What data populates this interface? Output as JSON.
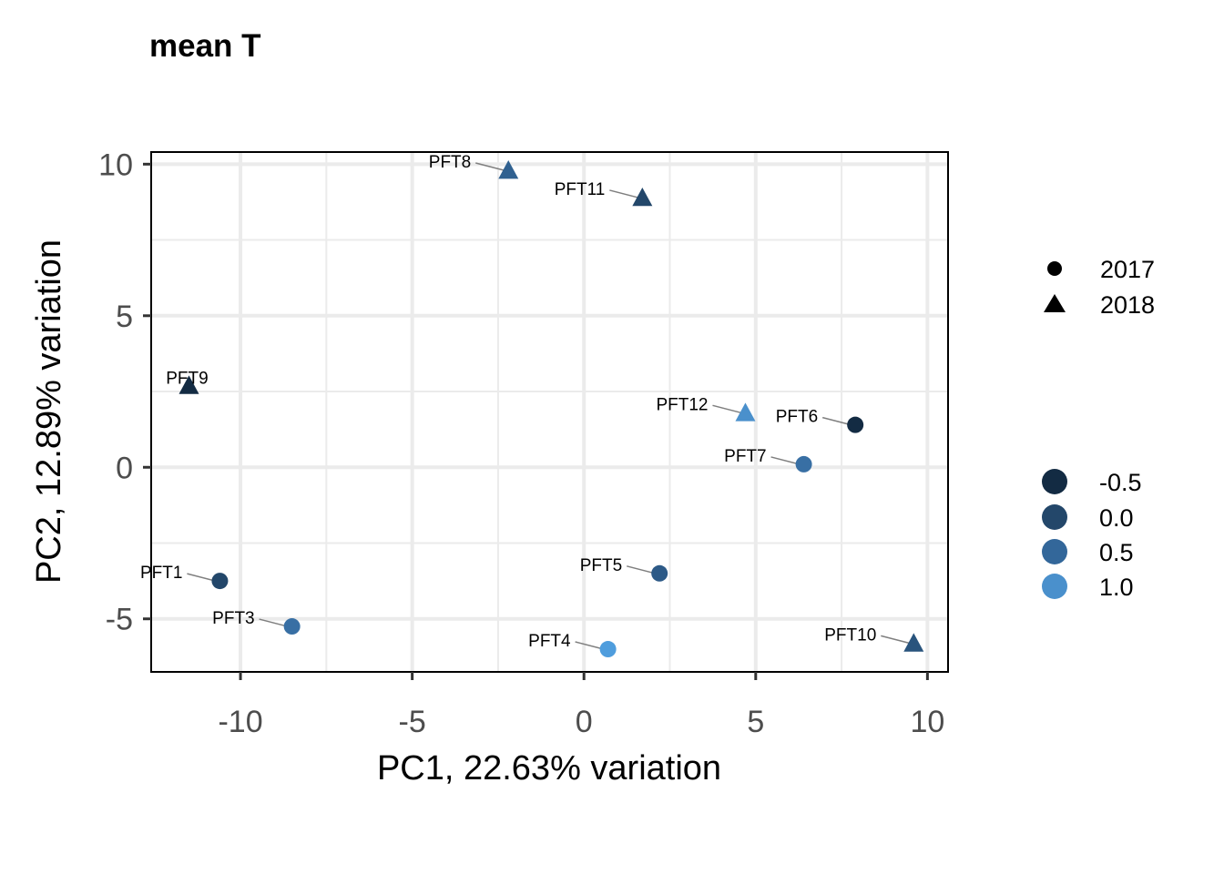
{
  "chart_data": {
    "type": "scatter",
    "title": "mean T",
    "xlabel": "PC1, 22.63% variation",
    "ylabel": "PC2, 12.89% variation",
    "xlim": [
      -12.6,
      10.6
    ],
    "ylim": [
      -6.75,
      10.4
    ],
    "xticks": [
      -10,
      -5,
      0,
      5,
      10
    ],
    "xtick_labels": [
      "-10",
      "-5",
      "0",
      "5",
      "10"
    ],
    "yticks": [
      -5,
      0,
      5,
      10
    ],
    "ytick_labels": [
      "-5",
      "0",
      "5",
      "10"
    ],
    "grid": true,
    "points": [
      {
        "label": "PFT8",
        "x": -2.2,
        "y": 9.8,
        "year": "2018",
        "color_value": 0.4
      },
      {
        "label": "PFT11",
        "x": 1.7,
        "y": 8.9,
        "year": "2018",
        "color_value": 0.0
      },
      {
        "label": "PFT9",
        "x": -11.5,
        "y": 2.7,
        "year": "2018",
        "color_value": -0.5
      },
      {
        "label": "PFT12",
        "x": 4.7,
        "y": 1.8,
        "year": "2018",
        "color_value": 1.0
      },
      {
        "label": "PFT6",
        "x": 7.9,
        "y": 1.4,
        "year": "2017",
        "color_value": -0.6
      },
      {
        "label": "PFT7",
        "x": 6.4,
        "y": 0.1,
        "year": "2017",
        "color_value": 0.6
      },
      {
        "label": "PFT1",
        "x": -10.6,
        "y": -3.75,
        "year": "2017",
        "color_value": 0.0
      },
      {
        "label": "PFT5",
        "x": 2.2,
        "y": -3.5,
        "year": "2017",
        "color_value": 0.3
      },
      {
        "label": "PFT3",
        "x": -8.5,
        "y": -5.25,
        "year": "2017",
        "color_value": 0.6
      },
      {
        "label": "PFT4",
        "x": 0.7,
        "y": -6.0,
        "year": "2017",
        "color_value": 1.2
      },
      {
        "label": "PFT10",
        "x": 9.6,
        "y": -5.8,
        "year": "2018",
        "color_value": 0.2
      }
    ],
    "legend_shape": {
      "placement": "right",
      "entries": [
        {
          "label": "2017",
          "shape": "circle"
        },
        {
          "label": "2018",
          "shape": "triangle"
        }
      ]
    },
    "legend_color": {
      "placement": "right",
      "entries": [
        {
          "label": "-0.5",
          "value": -0.5,
          "color": "#132B43"
        },
        {
          "label": "0.0",
          "value": 0.0,
          "color": "#23476A"
        },
        {
          "label": "0.5",
          "value": 0.5,
          "color": "#33679A"
        },
        {
          "label": "1.0",
          "value": 1.0,
          "color": "#4A90CC"
        }
      ]
    },
    "colors": {
      "low": "#132B43",
      "high": "#56B1F7",
      "grid": "#ebebeb",
      "label_segment": "#7f7f7f"
    }
  }
}
